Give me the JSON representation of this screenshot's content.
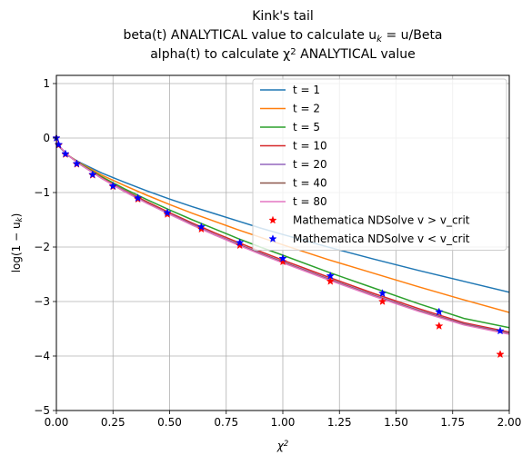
{
  "chart_data": {
    "type": "line",
    "title_lines": [
      "Kink's tail",
      "beta(t) ANALYTICAL value to calculate u_k = u/Beta",
      "alpha(t) to calculate χ² ANALYTICAL value"
    ],
    "xlabel": "χ²",
    "ylabel": "log(1 − u_k)",
    "xlim": [
      0,
      2
    ],
    "ylim": [
      -5,
      1.15
    ],
    "xticks": [
      0.0,
      0.25,
      0.5,
      0.75,
      1.0,
      1.25,
      1.5,
      1.75,
      2.0
    ],
    "xtick_labels": [
      "0.00",
      "0.25",
      "0.50",
      "0.75",
      "1.00",
      "1.25",
      "1.50",
      "1.75",
      "2.00"
    ],
    "yticks": [
      -5,
      -4,
      -3,
      -2,
      -1,
      0,
      1
    ],
    "ytick_labels": [
      "−5",
      "−4",
      "−3",
      "−2",
      "−1",
      "0",
      "1"
    ],
    "grid": true,
    "legend_position": "top-right",
    "series": [
      {
        "name": "t = 1",
        "color": "#1f77b4",
        "style": "line",
        "x": [
          0,
          0.01,
          0.05,
          0.1,
          0.2,
          0.3,
          0.4,
          0.5,
          0.6,
          0.7,
          0.8,
          0.9,
          1.0,
          1.2,
          1.4,
          1.6,
          1.8,
          2.0
        ],
        "y": [
          0,
          -0.15,
          -0.32,
          -0.44,
          -0.64,
          -0.81,
          -0.97,
          -1.12,
          -1.26,
          -1.39,
          -1.52,
          -1.65,
          -1.77,
          -2.0,
          -2.22,
          -2.43,
          -2.63,
          -2.83
        ]
      },
      {
        "name": "t = 2",
        "color": "#ff7f0e",
        "style": "line",
        "x": [
          0,
          0.01,
          0.05,
          0.1,
          0.2,
          0.3,
          0.4,
          0.5,
          0.6,
          0.7,
          0.8,
          0.9,
          1.0,
          1.2,
          1.4,
          1.6,
          1.8,
          2.0
        ],
        "y": [
          0,
          -0.14,
          -0.31,
          -0.45,
          -0.68,
          -0.87,
          -1.05,
          -1.22,
          -1.38,
          -1.53,
          -1.68,
          -1.82,
          -1.96,
          -2.23,
          -2.48,
          -2.73,
          -2.97,
          -3.2
        ]
      },
      {
        "name": "t = 5",
        "color": "#2ca02c",
        "style": "line",
        "x": [
          0,
          0.01,
          0.05,
          0.1,
          0.2,
          0.3,
          0.4,
          0.5,
          0.6,
          0.7,
          0.8,
          0.9,
          1.0,
          1.2,
          1.4,
          1.6,
          1.8,
          2.0
        ],
        "y": [
          0,
          -0.14,
          -0.31,
          -0.46,
          -0.71,
          -0.93,
          -1.13,
          -1.32,
          -1.5,
          -1.67,
          -1.84,
          -2.0,
          -2.15,
          -2.46,
          -2.75,
          -3.04,
          -3.31,
          -3.48
        ]
      },
      {
        "name": "t = 10",
        "color": "#d62728",
        "style": "line",
        "x": [
          0,
          0.01,
          0.05,
          0.1,
          0.2,
          0.3,
          0.4,
          0.5,
          0.6,
          0.7,
          0.8,
          0.9,
          1.0,
          1.2,
          1.4,
          1.6,
          1.8,
          2.0
        ],
        "y": [
          0,
          -0.14,
          -0.31,
          -0.47,
          -0.73,
          -0.96,
          -1.17,
          -1.37,
          -1.56,
          -1.74,
          -1.91,
          -2.08,
          -2.24,
          -2.55,
          -2.85,
          -3.13,
          -3.39,
          -3.56
        ]
      },
      {
        "name": "t = 20",
        "color": "#9467bd",
        "style": "line",
        "x": [
          0,
          0.01,
          0.05,
          0.1,
          0.2,
          0.3,
          0.4,
          0.5,
          0.6,
          0.7,
          0.8,
          0.9,
          1.0,
          1.2,
          1.4,
          1.6,
          1.8,
          2.0
        ],
        "y": [
          0,
          -0.14,
          -0.31,
          -0.47,
          -0.74,
          -0.97,
          -1.19,
          -1.39,
          -1.58,
          -1.77,
          -1.94,
          -2.11,
          -2.27,
          -2.58,
          -2.88,
          -3.16,
          -3.41,
          -3.58
        ]
      },
      {
        "name": "t = 40",
        "color": "#8c564b",
        "style": "line",
        "x": [
          0,
          0.01,
          0.05,
          0.1,
          0.2,
          0.3,
          0.4,
          0.5,
          0.6,
          0.7,
          0.8,
          0.9,
          1.0,
          1.2,
          1.4,
          1.6,
          1.8,
          2.0
        ],
        "y": [
          0,
          -0.14,
          -0.31,
          -0.47,
          -0.74,
          -0.98,
          -1.19,
          -1.4,
          -1.59,
          -1.78,
          -1.95,
          -2.12,
          -2.28,
          -2.59,
          -2.89,
          -3.17,
          -3.42,
          -3.59
        ]
      },
      {
        "name": "t = 80",
        "color": "#e377c2",
        "style": "line",
        "x": [
          0,
          0.01,
          0.05,
          0.1,
          0.2,
          0.3,
          0.4,
          0.5,
          0.6,
          0.7,
          0.8,
          0.9,
          1.0,
          1.2,
          1.4,
          1.6,
          1.8,
          2.0
        ],
        "y": [
          0,
          -0.14,
          -0.31,
          -0.47,
          -0.74,
          -0.98,
          -1.2,
          -1.4,
          -1.6,
          -1.78,
          -1.96,
          -2.13,
          -2.29,
          -2.6,
          -2.9,
          -3.18,
          -3.43,
          -3.6
        ]
      },
      {
        "name": "Mathematica NDSolve v > v_crit",
        "color": "#ff0000",
        "style": "star",
        "x": [
          0.0,
          0.01,
          0.04,
          0.09,
          0.16,
          0.25,
          0.36,
          0.49,
          0.64,
          0.81,
          1.0,
          1.21,
          1.44,
          1.69,
          1.96
        ],
        "y": [
          0.0,
          -0.13,
          -0.3,
          -0.48,
          -0.68,
          -0.89,
          -1.12,
          -1.4,
          -1.67,
          -1.97,
          -2.27,
          -2.63,
          -3.0,
          -3.45,
          -3.97
        ]
      },
      {
        "name": "Mathematica NDSolve v < v_crit",
        "color": "#0000ff",
        "style": "star",
        "x": [
          0.0,
          0.01,
          0.04,
          0.09,
          0.16,
          0.25,
          0.36,
          0.49,
          0.64,
          0.81,
          1.0,
          1.21,
          1.44,
          1.69,
          1.96
        ],
        "y": [
          0.0,
          -0.12,
          -0.29,
          -0.47,
          -0.67,
          -0.88,
          -1.1,
          -1.37,
          -1.63,
          -1.92,
          -2.21,
          -2.53,
          -2.85,
          -3.19,
          -3.54
        ]
      }
    ]
  }
}
